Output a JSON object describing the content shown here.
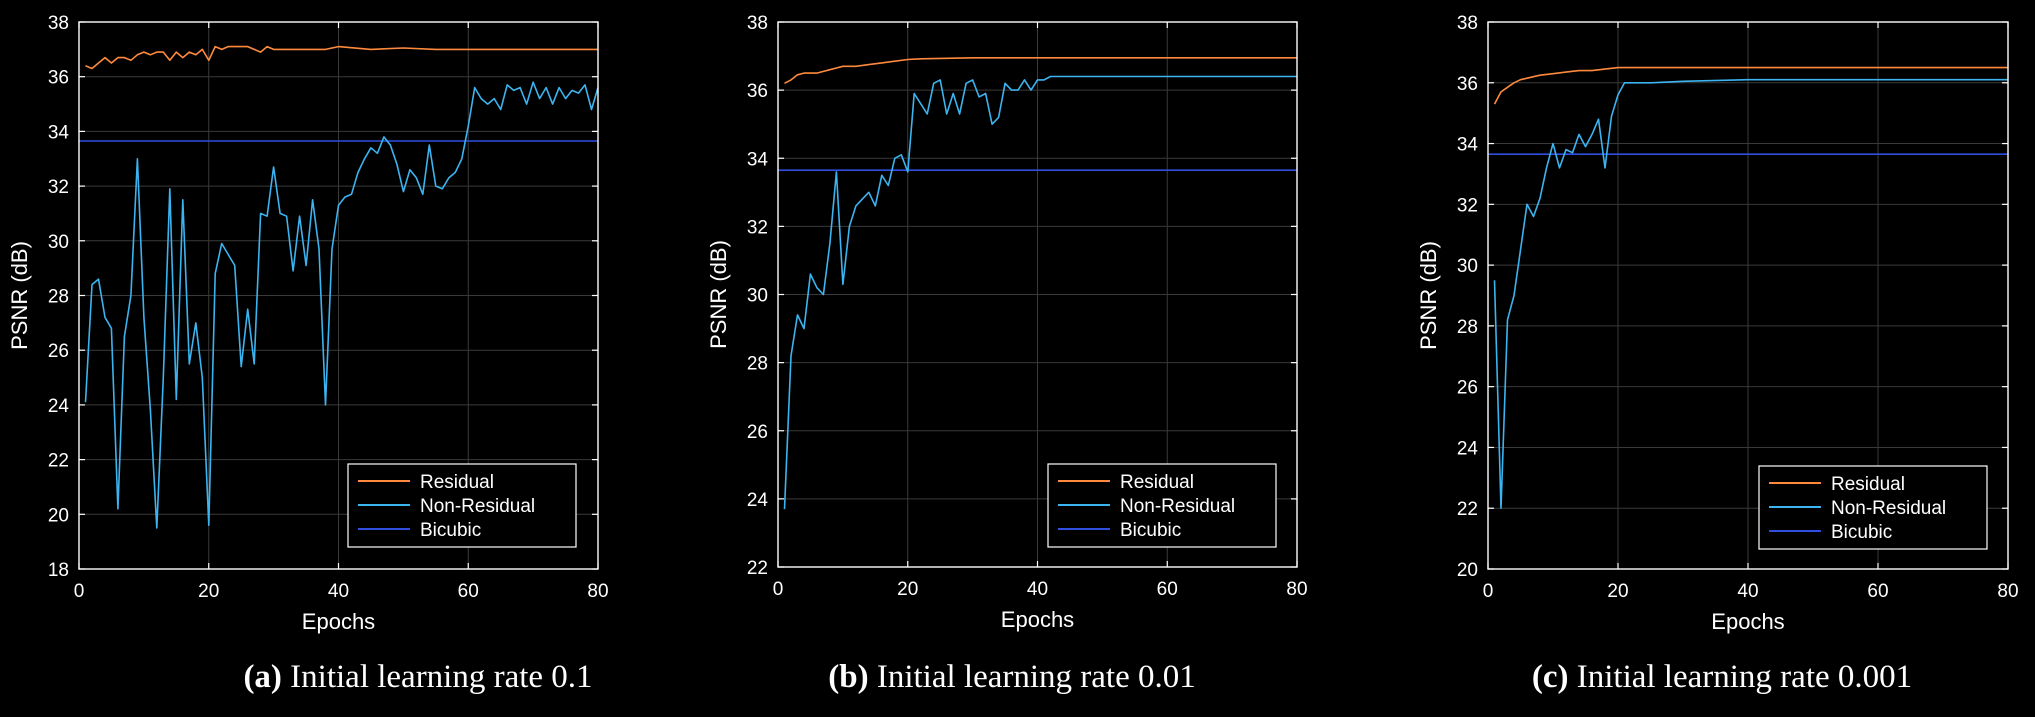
{
  "captions": [
    {
      "tag": "(a)",
      "text": " Initial learning rate 0.1"
    },
    {
      "tag": "(b)",
      "text": " Initial learning rate 0.01"
    },
    {
      "tag": "(c)",
      "text": " Initial learning rate 0.001"
    }
  ],
  "colors": {
    "background": "#000000",
    "axes": "#ffffff",
    "grid": "#3a3a3a",
    "residual": "#ff8a3d",
    "non_residual": "#3cb4f0",
    "bicubic": "#2f4fe0"
  },
  "chart_data": [
    {
      "type": "line",
      "xlabel": "Epochs",
      "ylabel": "PSNR (dB)",
      "xlim": [
        0,
        80
      ],
      "ylim": [
        18,
        38
      ],
      "xticks": [
        0,
        20,
        40,
        60,
        80
      ],
      "yticks": [
        18,
        20,
        22,
        24,
        26,
        28,
        30,
        32,
        34,
        36,
        38
      ],
      "grid": true,
      "legend": "bottom-right",
      "series": [
        {
          "name": "Residual",
          "x": [
            1,
            2,
            3,
            4,
            5,
            6,
            7,
            8,
            9,
            10,
            11,
            12,
            13,
            14,
            15,
            16,
            17,
            18,
            19,
            20,
            21,
            22,
            23,
            24,
            25,
            26,
            27,
            28,
            29,
            30,
            32,
            35,
            38,
            40,
            45,
            50,
            55,
            60,
            65,
            70,
            75,
            80
          ],
          "values": [
            36.4,
            36.3,
            36.5,
            36.7,
            36.5,
            36.7,
            36.7,
            36.6,
            36.8,
            36.9,
            36.8,
            36.9,
            36.9,
            36.6,
            36.9,
            36.7,
            36.9,
            36.8,
            37.0,
            36.6,
            37.1,
            37.0,
            37.1,
            37.1,
            37.1,
            37.1,
            37.0,
            36.9,
            37.1,
            37.0,
            37.0,
            37.0,
            37.0,
            37.1,
            37.0,
            37.05,
            37.0,
            37.0,
            37.0,
            37.0,
            37.0,
            37.0
          ]
        },
        {
          "name": "Non-Residual",
          "x": [
            1,
            2,
            3,
            4,
            5,
            6,
            7,
            8,
            9,
            10,
            11,
            12,
            13,
            14,
            15,
            16,
            17,
            18,
            19,
            20,
            21,
            22,
            23,
            24,
            25,
            26,
            27,
            28,
            29,
            30,
            31,
            32,
            33,
            34,
            35,
            36,
            37,
            38,
            39,
            40,
            41,
            42,
            43,
            44,
            45,
            46,
            47,
            48,
            49,
            50,
            51,
            52,
            53,
            54,
            55,
            56,
            57,
            58,
            59,
            60,
            61,
            62,
            63,
            64,
            65,
            66,
            67,
            68,
            69,
            70,
            71,
            72,
            73,
            74,
            75,
            76,
            77,
            78,
            79,
            80
          ],
          "values": [
            24.1,
            28.4,
            28.6,
            27.2,
            26.8,
            20.2,
            26.5,
            28.0,
            33.0,
            27.2,
            23.8,
            19.5,
            25.0,
            31.9,
            24.2,
            31.5,
            25.5,
            27.0,
            25.0,
            19.6,
            28.8,
            29.9,
            29.5,
            29.1,
            25.4,
            27.5,
            25.5,
            31.0,
            30.9,
            32.7,
            31.0,
            30.9,
            28.9,
            30.9,
            29.1,
            31.5,
            29.7,
            24.0,
            29.7,
            31.3,
            31.6,
            31.7,
            32.5,
            33.0,
            33.4,
            33.2,
            33.8,
            33.5,
            32.8,
            31.8,
            32.6,
            32.3,
            31.7,
            33.5,
            32.0,
            31.9,
            32.3,
            32.5,
            33.0,
            34.2,
            35.6,
            35.2,
            35.0,
            35.2,
            34.8,
            35.7,
            35.5,
            35.6,
            35.0,
            35.8,
            35.2,
            35.6,
            35.0,
            35.6,
            35.2,
            35.5,
            35.4,
            35.7,
            34.8,
            35.6
          ]
        },
        {
          "name": "Bicubic",
          "x": [
            0,
            80
          ],
          "values": [
            33.65,
            33.65
          ]
        }
      ]
    },
    {
      "type": "line",
      "xlabel": "Epochs",
      "ylabel": "PSNR (dB)",
      "xlim": [
        0,
        80
      ],
      "ylim": [
        22,
        38
      ],
      "xticks": [
        0,
        20,
        40,
        60,
        80
      ],
      "yticks": [
        22,
        24,
        26,
        28,
        30,
        32,
        34,
        36,
        38
      ],
      "grid": true,
      "legend": "bottom-right",
      "series": [
        {
          "name": "Residual",
          "x": [
            1,
            2,
            3,
            4,
            5,
            6,
            7,
            8,
            9,
            10,
            12,
            14,
            16,
            18,
            20,
            22,
            25,
            30,
            35,
            40,
            45,
            50,
            60,
            70,
            80
          ],
          "values": [
            36.2,
            36.3,
            36.45,
            36.5,
            36.5,
            36.5,
            36.55,
            36.6,
            36.65,
            36.7,
            36.7,
            36.75,
            36.8,
            36.85,
            36.9,
            36.92,
            36.93,
            36.95,
            36.95,
            36.95,
            36.95,
            36.95,
            36.95,
            36.95,
            36.95
          ]
        },
        {
          "name": "Non-Residual",
          "x": [
            1,
            2,
            3,
            4,
            5,
            6,
            7,
            8,
            9,
            10,
            11,
            12,
            13,
            14,
            15,
            16,
            17,
            18,
            19,
            20,
            21,
            22,
            23,
            24,
            25,
            26,
            27,
            28,
            29,
            30,
            31,
            32,
            33,
            34,
            35,
            36,
            37,
            38,
            39,
            40,
            41,
            42,
            45,
            50,
            60,
            70,
            80
          ],
          "values": [
            23.7,
            28.2,
            29.4,
            29.0,
            30.6,
            30.2,
            30.0,
            31.5,
            33.6,
            30.3,
            32.0,
            32.6,
            32.8,
            33.0,
            32.6,
            33.5,
            33.2,
            34.0,
            34.1,
            33.6,
            35.9,
            35.6,
            35.3,
            36.2,
            36.3,
            35.3,
            35.9,
            35.3,
            36.2,
            36.3,
            35.8,
            35.9,
            35.0,
            35.2,
            36.2,
            36.0,
            36.0,
            36.3,
            36.0,
            36.3,
            36.3,
            36.4,
            36.4,
            36.4,
            36.4,
            36.4,
            36.4
          ]
        },
        {
          "name": "Bicubic",
          "x": [
            0,
            80
          ],
          "values": [
            33.65,
            33.65
          ]
        }
      ]
    },
    {
      "type": "line",
      "xlabel": "Epochs",
      "ylabel": "PSNR (dB)",
      "xlim": [
        0,
        80
      ],
      "ylim": [
        20,
        38
      ],
      "xticks": [
        0,
        20,
        40,
        60,
        80
      ],
      "yticks": [
        20,
        22,
        24,
        26,
        28,
        30,
        32,
        34,
        36,
        38
      ],
      "grid": true,
      "legend": "bottom-right",
      "series": [
        {
          "name": "Residual",
          "x": [
            1,
            2,
            3,
            4,
            5,
            6,
            7,
            8,
            10,
            12,
            14,
            16,
            18,
            20,
            25,
            30,
            40,
            50,
            60,
            70,
            80
          ],
          "values": [
            35.3,
            35.7,
            35.85,
            36.0,
            36.1,
            36.15,
            36.2,
            36.25,
            36.3,
            36.35,
            36.4,
            36.4,
            36.45,
            36.5,
            36.5,
            36.5,
            36.5,
            36.5,
            36.5,
            36.5,
            36.5
          ]
        },
        {
          "name": "Non-Residual",
          "x": [
            1,
            2,
            3,
            4,
            5,
            6,
            7,
            8,
            9,
            10,
            11,
            12,
            13,
            14,
            15,
            16,
            17,
            18,
            19,
            20,
            21,
            25,
            30,
            40,
            50,
            60,
            70,
            80
          ],
          "values": [
            29.5,
            22.0,
            28.2,
            29.0,
            30.5,
            32.0,
            31.6,
            32.2,
            33.2,
            34.0,
            33.2,
            33.8,
            33.7,
            34.3,
            33.9,
            34.3,
            34.8,
            33.2,
            34.9,
            35.6,
            36.0,
            36.0,
            36.05,
            36.1,
            36.1,
            36.1,
            36.1,
            36.1
          ]
        },
        {
          "name": "Bicubic",
          "x": [
            0,
            80
          ],
          "values": [
            33.65,
            33.65
          ]
        }
      ]
    }
  ]
}
